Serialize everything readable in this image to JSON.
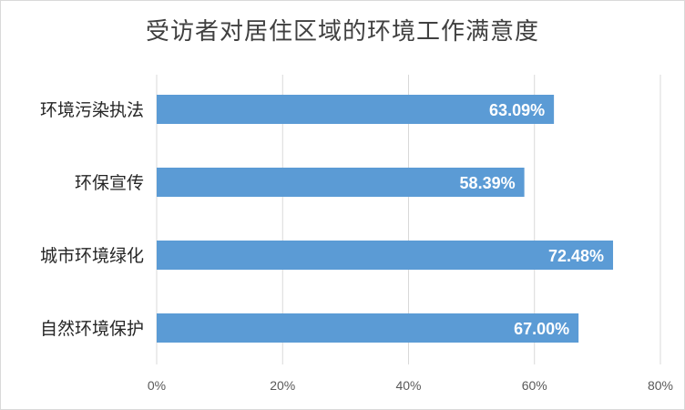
{
  "chart_data": {
    "type": "bar",
    "orientation": "horizontal",
    "title": "受访者对居住区域的环境工作满意度",
    "categories": [
      "环境污染执法",
      "环保宣传",
      "城市环境绿化",
      "自然环境保护"
    ],
    "values": [
      63.09,
      58.39,
      72.48,
      67.0
    ],
    "data_labels": [
      "63.09%",
      "58.39%",
      "72.48%",
      "67.00%"
    ],
    "xlim": [
      0,
      80
    ],
    "x_ticks": [
      0,
      20,
      40,
      60,
      80
    ],
    "x_tick_labels": [
      "0%",
      "20%",
      "40%",
      "60%",
      "80%"
    ],
    "xlabel": "",
    "ylabel": "",
    "grid": "vertical",
    "legend": "none",
    "colors": {
      "bar": "#5b9bd5",
      "grid": "#d9d9d9",
      "title": "#404040"
    }
  }
}
